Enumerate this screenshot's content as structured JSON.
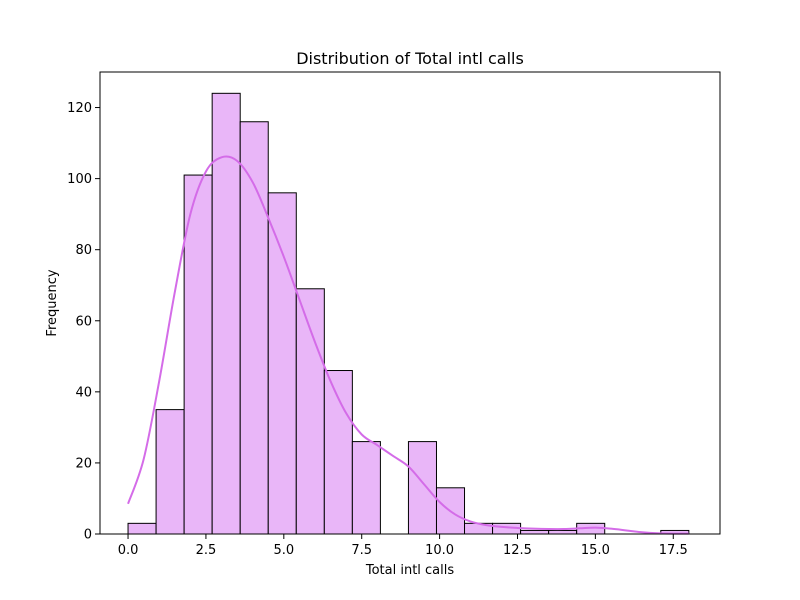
{
  "chart_data": {
    "type": "bar",
    "subtype": "histogram-with-kde",
    "title": "Distribution of Total intl calls",
    "xlabel": "Total intl calls",
    "ylabel": "Frequency",
    "bin_width": 0.9,
    "bins": [
      {
        "start": 0.0,
        "end": 0.9,
        "count": 3
      },
      {
        "start": 0.9,
        "end": 1.8,
        "count": 35
      },
      {
        "start": 1.8,
        "end": 2.7,
        "count": 101
      },
      {
        "start": 2.7,
        "end": 3.6,
        "count": 124
      },
      {
        "start": 3.6,
        "end": 4.5,
        "count": 116
      },
      {
        "start": 4.5,
        "end": 5.4,
        "count": 96
      },
      {
        "start": 5.4,
        "end": 6.3,
        "count": 69
      },
      {
        "start": 6.3,
        "end": 7.2,
        "count": 46
      },
      {
        "start": 7.2,
        "end": 8.1,
        "count": 26
      },
      {
        "start": 8.1,
        "end": 9.0,
        "count": 0
      },
      {
        "start": 9.0,
        "end": 9.9,
        "count": 26
      },
      {
        "start": 9.9,
        "end": 10.8,
        "count": 13
      },
      {
        "start": 10.8,
        "end": 11.7,
        "count": 3
      },
      {
        "start": 11.7,
        "end": 12.6,
        "count": 3
      },
      {
        "start": 12.6,
        "end": 13.5,
        "count": 1
      },
      {
        "start": 13.5,
        "end": 14.4,
        "count": 1
      },
      {
        "start": 14.4,
        "end": 15.3,
        "count": 3
      },
      {
        "start": 15.3,
        "end": 16.2,
        "count": 0
      },
      {
        "start": 16.2,
        "end": 17.1,
        "count": 0
      },
      {
        "start": 17.1,
        "end": 18.0,
        "count": 1
      }
    ],
    "kde": {
      "x": [
        0.0,
        0.5,
        1.0,
        1.5,
        2.0,
        2.5,
        3.0,
        3.5,
        4.0,
        4.5,
        5.0,
        5.5,
        6.0,
        6.5,
        7.0,
        7.5,
        8.0,
        8.5,
        9.0,
        9.5,
        10.0,
        10.5,
        11.0,
        11.5,
        12.0,
        12.5,
        13.0,
        13.5,
        14.0,
        14.5,
        15.0,
        15.5,
        16.0,
        16.5,
        17.0,
        17.5,
        18.0
      ],
      "y": [
        8.5,
        21,
        43,
        68,
        90,
        102,
        106,
        105,
        99,
        89,
        78,
        66,
        54,
        43,
        34,
        28,
        25,
        22,
        19,
        14,
        9,
        5.5,
        3.5,
        2.5,
        2,
        1.7,
        1.5,
        1.4,
        1.4,
        1.6,
        1.8,
        1.5,
        1,
        0.5,
        0.2,
        0.1,
        0.1
      ]
    },
    "xlim": [
      -0.9,
      19.0
    ],
    "ylim": [
      0,
      130
    ],
    "xticks": [
      0.0,
      2.5,
      5.0,
      7.5,
      10.0,
      12.5,
      15.0,
      17.5
    ],
    "yticks": [
      0,
      20,
      40,
      60,
      80,
      100,
      120
    ],
    "colors": {
      "bar_fill": "#e9b6f8",
      "bar_edge": "#000000",
      "kde_line": "#d46ce8"
    },
    "grid": false,
    "legend": "none"
  }
}
